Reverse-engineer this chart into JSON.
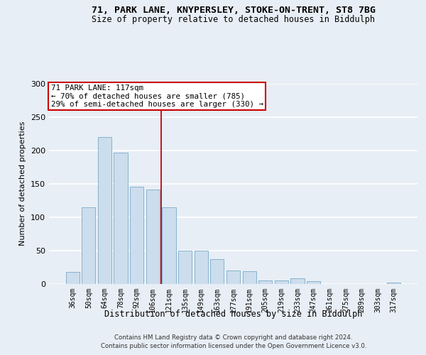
{
  "title_line1": "71, PARK LANE, KNYPERSLEY, STOKE-ON-TRENT, ST8 7BG",
  "title_line2": "Size of property relative to detached houses in Biddulph",
  "xlabel": "Distribution of detached houses by size in Biddulph",
  "ylabel": "Number of detached properties",
  "categories": [
    "36sqm",
    "50sqm",
    "64sqm",
    "78sqm",
    "92sqm",
    "106sqm",
    "121sqm",
    "135sqm",
    "149sqm",
    "163sqm",
    "177sqm",
    "191sqm",
    "205sqm",
    "219sqm",
    "233sqm",
    "247sqm",
    "261sqm",
    "275sqm",
    "289sqm",
    "303sqm",
    "317sqm"
  ],
  "values": [
    18,
    115,
    220,
    196,
    145,
    141,
    115,
    50,
    50,
    37,
    20,
    19,
    5,
    5,
    8,
    4,
    0,
    0,
    0,
    0,
    2
  ],
  "bar_color": "#ccdded",
  "bar_edge_color": "#7aaac8",
  "vline_x": 5.5,
  "annotation_line1": "71 PARK LANE: 117sqm",
  "annotation_line2": "← 70% of detached houses are smaller (785)",
  "annotation_line3": "29% of semi-detached houses are larger (330) →",
  "annotation_box_facecolor": "#ffffff",
  "annotation_box_edgecolor": "#cc0000",
  "vline_color": "#cc0000",
  "ylim": [
    0,
    300
  ],
  "yticks": [
    0,
    50,
    100,
    150,
    200,
    250,
    300
  ],
  "footer_line1": "Contains HM Land Registry data © Crown copyright and database right 2024.",
  "footer_line2": "Contains public sector information licensed under the Open Government Licence v3.0.",
  "background_color": "#e8eef5",
  "grid_color": "#ffffff"
}
